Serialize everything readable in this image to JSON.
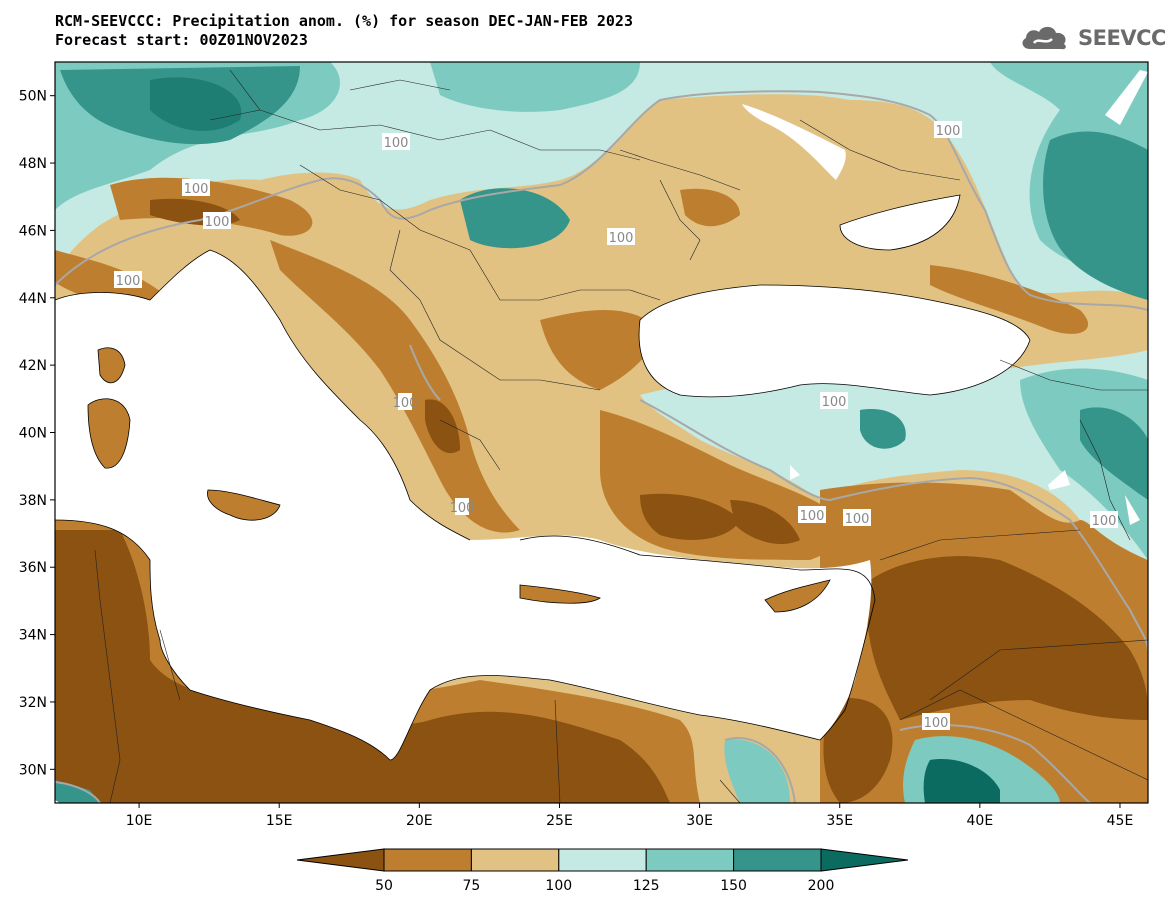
{
  "header": {
    "title": "RCM-SEEVCCC: Precipitation anom. (%) for season DEC-JAN-FEB 2023",
    "subtitle": "Forecast start: 00Z01NOV2023",
    "logo_text": "SEEVCCC",
    "logo_icon": "cloud-icon"
  },
  "map": {
    "lon_range": [
      7,
      46
    ],
    "lat_range": [
      29,
      51
    ],
    "lat_ticks": [
      "50N",
      "48N",
      "46N",
      "44N",
      "42N",
      "40N",
      "38N",
      "36N",
      "34N",
      "32N",
      "30N"
    ],
    "lon_ticks": [
      "10E",
      "15E",
      "20E",
      "25E",
      "30E",
      "35E",
      "40E",
      "45E"
    ],
    "contour_labels": [
      "100",
      "100",
      "100",
      "100",
      "100",
      "100",
      "100",
      "100",
      "100",
      "100",
      "100",
      "100",
      "100"
    ]
  },
  "colorbar": {
    "labels": [
      "50",
      "75",
      "100",
      "125",
      "150",
      "200"
    ],
    "colors": [
      "#8b5212",
      "#bd7f2f",
      "#e2c283",
      "#c5e9e3",
      "#7dcbc0",
      "#35958a",
      "#0c6b60"
    ]
  }
}
